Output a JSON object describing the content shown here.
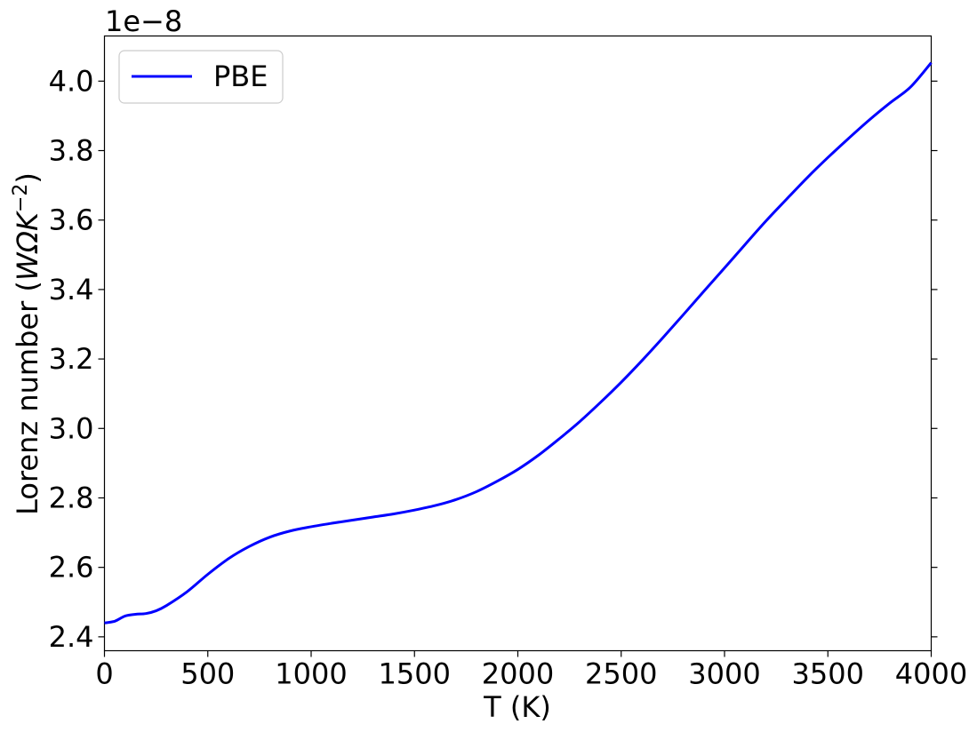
{
  "chart_data": {
    "type": "line",
    "xlabel": "T (K)",
    "ylabel_text": "Lorenz number (",
    "ylabel_unit_base": "WΩK",
    "ylabel_unit_exp": "−2",
    "ylabel_close": ")",
    "offset_text": "1e−8",
    "xlim": [
      0,
      4000
    ],
    "ylim": [
      2.36,
      4.13
    ],
    "xticks": [
      0,
      500,
      1000,
      1500,
      2000,
      2500,
      3000,
      3500,
      4000
    ],
    "xtick_labels": [
      "0",
      "500",
      "1000",
      "1500",
      "2000",
      "2500",
      "3000",
      "3500",
      "4000"
    ],
    "yticks": [
      2.4,
      2.6,
      2.8,
      3.0,
      3.2,
      3.4,
      3.6,
      3.8,
      4.0
    ],
    "ytick_labels": [
      "2.4",
      "2.6",
      "2.8",
      "3.0",
      "3.2",
      "3.4",
      "3.6",
      "3.8",
      "4.0"
    ],
    "grid": false,
    "legend_position": "top-left",
    "series": [
      {
        "name": "PBE",
        "color": "#0000ff",
        "x": [
          0,
          50,
          100,
          150,
          200,
          250,
          300,
          400,
          500,
          600,
          700,
          800,
          900,
          1000,
          1100,
          1200,
          1300,
          1400,
          1500,
          1600,
          1700,
          1800,
          1900,
          2000,
          2100,
          2200,
          2300,
          2400,
          2500,
          2600,
          2700,
          2800,
          2900,
          3000,
          3100,
          3200,
          3300,
          3400,
          3500,
          3600,
          3700,
          3800,
          3900,
          4000
        ],
        "y": [
          2.44,
          2.445,
          2.46,
          2.465,
          2.467,
          2.475,
          2.49,
          2.53,
          2.58,
          2.625,
          2.66,
          2.687,
          2.705,
          2.717,
          2.727,
          2.736,
          2.745,
          2.754,
          2.765,
          2.778,
          2.795,
          2.818,
          2.848,
          2.882,
          2.923,
          2.97,
          3.02,
          3.075,
          3.133,
          3.195,
          3.26,
          3.327,
          3.395,
          3.462,
          3.53,
          3.597,
          3.66,
          3.722,
          3.78,
          3.835,
          3.888,
          3.937,
          3.983,
          4.053
        ]
      }
    ]
  }
}
